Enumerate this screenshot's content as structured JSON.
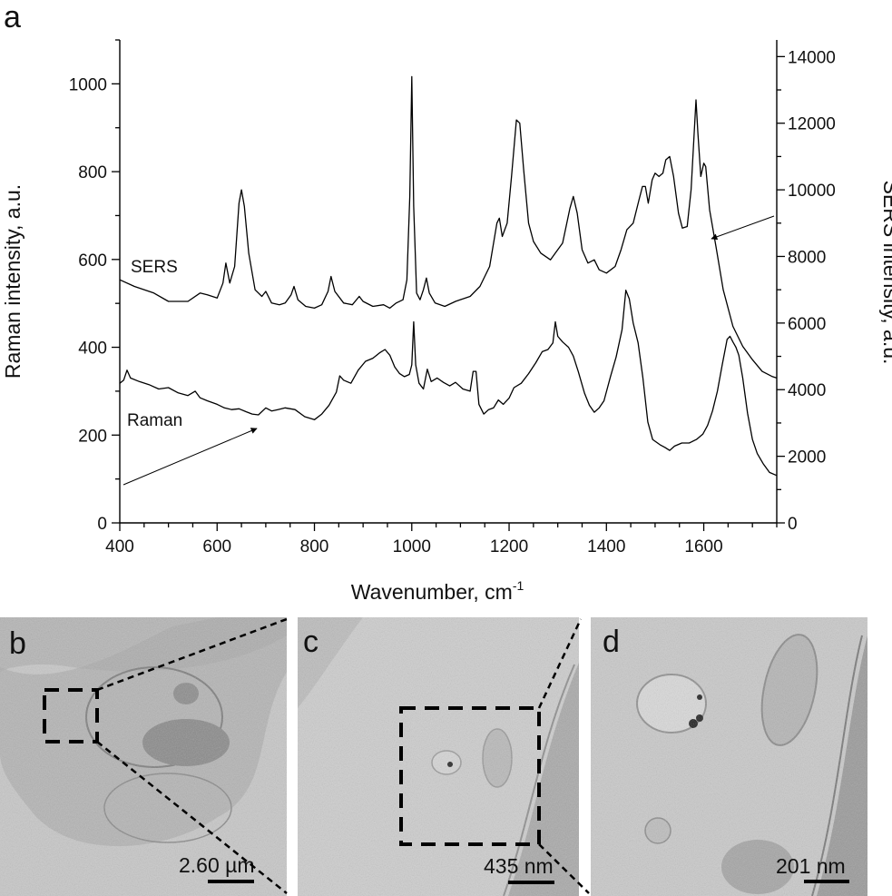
{
  "panel_labels": {
    "a": "a",
    "b": "b",
    "c": "c",
    "d": "d"
  },
  "chart_data": {
    "type": "line",
    "title": "",
    "xlabel": "Wavenumber, cm",
    "xlabel_superscript": "-1",
    "ylabel_left": "Raman intensity, a.u.",
    "ylabel_right": "SERS intensity, a.u.",
    "xlim": [
      400,
      1750
    ],
    "ylim_left": [
      0,
      1100
    ],
    "ylim_right": [
      0,
      14500
    ],
    "x_ticks": [
      400,
      600,
      800,
      1000,
      1200,
      1400,
      1600
    ],
    "y_left_ticks": [
      0,
      200,
      400,
      600,
      800,
      1000
    ],
    "y_right_ticks": [
      0,
      2000,
      4000,
      6000,
      8000,
      10000,
      12000,
      14000
    ],
    "grid": false,
    "series": [
      {
        "name": "SERS",
        "axis": "right",
        "points": [
          [
            400,
            7300
          ],
          [
            430,
            7100
          ],
          [
            470,
            6900
          ],
          [
            500,
            6650
          ],
          [
            540,
            6650
          ],
          [
            565,
            6900
          ],
          [
            580,
            6850
          ],
          [
            600,
            6750
          ],
          [
            612,
            7200
          ],
          [
            618,
            7800
          ],
          [
            626,
            7200
          ],
          [
            636,
            7700
          ],
          [
            645,
            9600
          ],
          [
            650,
            10000
          ],
          [
            656,
            9500
          ],
          [
            665,
            8100
          ],
          [
            678,
            7000
          ],
          [
            692,
            6800
          ],
          [
            700,
            6950
          ],
          [
            712,
            6600
          ],
          [
            728,
            6550
          ],
          [
            740,
            6600
          ],
          [
            752,
            6850
          ],
          [
            758,
            7100
          ],
          [
            766,
            6700
          ],
          [
            782,
            6500
          ],
          [
            800,
            6450
          ],
          [
            815,
            6550
          ],
          [
            828,
            6950
          ],
          [
            834,
            7400
          ],
          [
            842,
            6950
          ],
          [
            860,
            6600
          ],
          [
            878,
            6550
          ],
          [
            892,
            6800
          ],
          [
            900,
            6650
          ],
          [
            920,
            6500
          ],
          [
            942,
            6550
          ],
          [
            955,
            6450
          ],
          [
            968,
            6600
          ],
          [
            982,
            6700
          ],
          [
            990,
            7300
          ],
          [
            996,
            9800
          ],
          [
            1000,
            13400
          ],
          [
            1004,
            9500
          ],
          [
            1010,
            6900
          ],
          [
            1017,
            6700
          ],
          [
            1024,
            7000
          ],
          [
            1030,
            7350
          ],
          [
            1036,
            6900
          ],
          [
            1048,
            6600
          ],
          [
            1068,
            6500
          ],
          [
            1090,
            6650
          ],
          [
            1120,
            6800
          ],
          [
            1140,
            7100
          ],
          [
            1160,
            7700
          ],
          [
            1175,
            9000
          ],
          [
            1180,
            9150
          ],
          [
            1186,
            8600
          ],
          [
            1196,
            9000
          ],
          [
            1205,
            10400
          ],
          [
            1215,
            12100
          ],
          [
            1222,
            12000
          ],
          [
            1230,
            10600
          ],
          [
            1240,
            9000
          ],
          [
            1250,
            8450
          ],
          [
            1265,
            8100
          ],
          [
            1285,
            7900
          ],
          [
            1295,
            8100
          ],
          [
            1310,
            8400
          ],
          [
            1325,
            9450
          ],
          [
            1332,
            9800
          ],
          [
            1340,
            9300
          ],
          [
            1350,
            8200
          ],
          [
            1362,
            7800
          ],
          [
            1375,
            7900
          ],
          [
            1385,
            7600
          ],
          [
            1400,
            7500
          ],
          [
            1418,
            7700
          ],
          [
            1430,
            8200
          ],
          [
            1442,
            8800
          ],
          [
            1455,
            9000
          ],
          [
            1467,
            9700
          ],
          [
            1474,
            10100
          ],
          [
            1480,
            10100
          ],
          [
            1486,
            9600
          ],
          [
            1494,
            10300
          ],
          [
            1500,
            10500
          ],
          [
            1508,
            10400
          ],
          [
            1516,
            10500
          ],
          [
            1522,
            10900
          ],
          [
            1530,
            11000
          ],
          [
            1538,
            10400
          ],
          [
            1548,
            9300
          ],
          [
            1556,
            8850
          ],
          [
            1566,
            8900
          ],
          [
            1574,
            10000
          ],
          [
            1580,
            11600
          ],
          [
            1584,
            12700
          ],
          [
            1588,
            11700
          ],
          [
            1594,
            10400
          ],
          [
            1600,
            10800
          ],
          [
            1604,
            10700
          ],
          [
            1612,
            9400
          ],
          [
            1625,
            8300
          ],
          [
            1640,
            7000
          ],
          [
            1660,
            5900
          ],
          [
            1680,
            5300
          ],
          [
            1700,
            4900
          ],
          [
            1720,
            4550
          ],
          [
            1740,
            4400
          ],
          [
            1750,
            4350
          ]
        ]
      },
      {
        "name": "Raman",
        "axis": "left",
        "points": [
          [
            400,
            318
          ],
          [
            408,
            325
          ],
          [
            415,
            348
          ],
          [
            422,
            330
          ],
          [
            440,
            322
          ],
          [
            460,
            315
          ],
          [
            480,
            305
          ],
          [
            500,
            308
          ],
          [
            520,
            296
          ],
          [
            540,
            290
          ],
          [
            555,
            300
          ],
          [
            565,
            285
          ],
          [
            580,
            278
          ],
          [
            600,
            270
          ],
          [
            615,
            262
          ],
          [
            630,
            258
          ],
          [
            645,
            260
          ],
          [
            660,
            253
          ],
          [
            672,
            248
          ],
          [
            685,
            246
          ],
          [
            700,
            262
          ],
          [
            712,
            255
          ],
          [
            725,
            258
          ],
          [
            740,
            262
          ],
          [
            760,
            258
          ],
          [
            780,
            242
          ],
          [
            800,
            235
          ],
          [
            815,
            248
          ],
          [
            830,
            268
          ],
          [
            845,
            298
          ],
          [
            852,
            335
          ],
          [
            860,
            325
          ],
          [
            875,
            318
          ],
          [
            890,
            348
          ],
          [
            905,
            368
          ],
          [
            920,
            375
          ],
          [
            935,
            388
          ],
          [
            945,
            395
          ],
          [
            955,
            382
          ],
          [
            965,
            355
          ],
          [
            975,
            340
          ],
          [
            985,
            333
          ],
          [
            995,
            338
          ],
          [
            1000,
            360
          ],
          [
            1004,
            458
          ],
          [
            1008,
            360
          ],
          [
            1015,
            318
          ],
          [
            1024,
            305
          ],
          [
            1032,
            350
          ],
          [
            1040,
            322
          ],
          [
            1052,
            330
          ],
          [
            1065,
            320
          ],
          [
            1078,
            312
          ],
          [
            1090,
            320
          ],
          [
            1105,
            305
          ],
          [
            1120,
            300
          ],
          [
            1126,
            345
          ],
          [
            1132,
            345
          ],
          [
            1138,
            270
          ],
          [
            1148,
            248
          ],
          [
            1158,
            258
          ],
          [
            1168,
            262
          ],
          [
            1178,
            280
          ],
          [
            1188,
            270
          ],
          [
            1200,
            284
          ],
          [
            1210,
            308
          ],
          [
            1225,
            318
          ],
          [
            1240,
            340
          ],
          [
            1255,
            365
          ],
          [
            1268,
            390
          ],
          [
            1280,
            395
          ],
          [
            1290,
            410
          ],
          [
            1295,
            458
          ],
          [
            1300,
            425
          ],
          [
            1310,
            412
          ],
          [
            1322,
            400
          ],
          [
            1332,
            380
          ],
          [
            1342,
            345
          ],
          [
            1355,
            295
          ],
          [
            1365,
            268
          ],
          [
            1375,
            252
          ],
          [
            1385,
            262
          ],
          [
            1395,
            278
          ],
          [
            1408,
            332
          ],
          [
            1420,
            378
          ],
          [
            1432,
            440
          ],
          [
            1440,
            530
          ],
          [
            1447,
            510
          ],
          [
            1455,
            455
          ],
          [
            1465,
            410
          ],
          [
            1475,
            330
          ],
          [
            1485,
            230
          ],
          [
            1495,
            190
          ],
          [
            1510,
            178
          ],
          [
            1520,
            172
          ],
          [
            1530,
            165
          ],
          [
            1540,
            175
          ],
          [
            1555,
            182
          ],
          [
            1570,
            182
          ],
          [
            1585,
            190
          ],
          [
            1598,
            202
          ],
          [
            1608,
            222
          ],
          [
            1618,
            255
          ],
          [
            1628,
            300
          ],
          [
            1638,
            360
          ],
          [
            1648,
            418
          ],
          [
            1654,
            425
          ],
          [
            1660,
            412
          ],
          [
            1666,
            400
          ],
          [
            1672,
            382
          ],
          [
            1680,
            330
          ],
          [
            1690,
            250
          ],
          [
            1700,
            190
          ],
          [
            1710,
            158
          ],
          [
            1722,
            135
          ],
          [
            1735,
            115
          ],
          [
            1750,
            108
          ]
        ]
      }
    ],
    "annotations": [
      {
        "text": "SERS",
        "series": "SERS"
      },
      {
        "text": "Raman",
        "series": "Raman"
      }
    ]
  },
  "micrographs": [
    {
      "panel": "b",
      "scale_label": "2.60 µm"
    },
    {
      "panel": "c",
      "scale_label": "435 nm"
    },
    {
      "panel": "d",
      "scale_label": "201 nm"
    }
  ]
}
